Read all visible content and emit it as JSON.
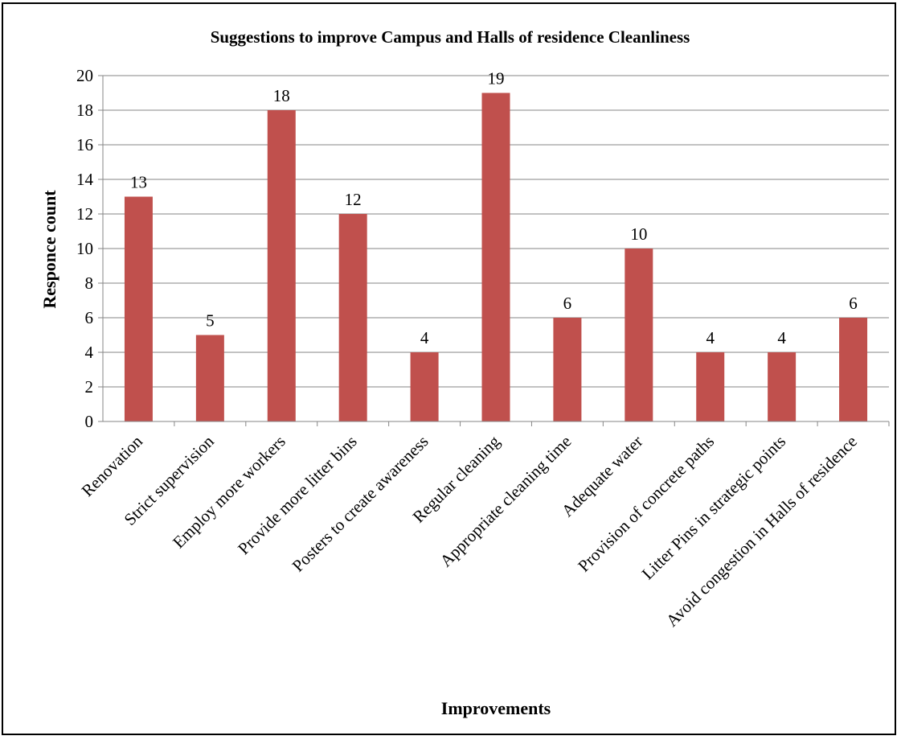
{
  "chart_data": {
    "type": "bar",
    "title": "Suggestions to improve Campus and Halls of residence Cleanliness",
    "xlabel": "Improvements",
    "ylabel": "Responce count",
    "categories": [
      "Renovation",
      "Strict supervision",
      "Employ more workers",
      "Provide more litter bins",
      "Posters to create awareness",
      "Regular cleaning",
      "Appropriate cleaning time",
      "Adequate water",
      "Provision of concrete paths",
      "Litter Pins in strategic points",
      "Avoid congestion in Halls of residence"
    ],
    "values": [
      13,
      5,
      18,
      12,
      4,
      19,
      6,
      10,
      4,
      4,
      6
    ],
    "data_labels": [
      "13",
      "5",
      "18",
      "12",
      "4",
      "19",
      "6",
      "10",
      "4",
      "4",
      "6"
    ],
    "ylim": [
      0,
      20
    ],
    "yticks": [
      0,
      2,
      4,
      6,
      8,
      10,
      12,
      14,
      16,
      18,
      20
    ],
    "ytick_labels": [
      "0",
      "2",
      "4",
      "6",
      "8",
      "10",
      "12",
      "14",
      "16",
      "18",
      "20"
    ],
    "grid": true,
    "legend": "none",
    "bar_color": "#C0504D",
    "grid_color": "#868686"
  }
}
